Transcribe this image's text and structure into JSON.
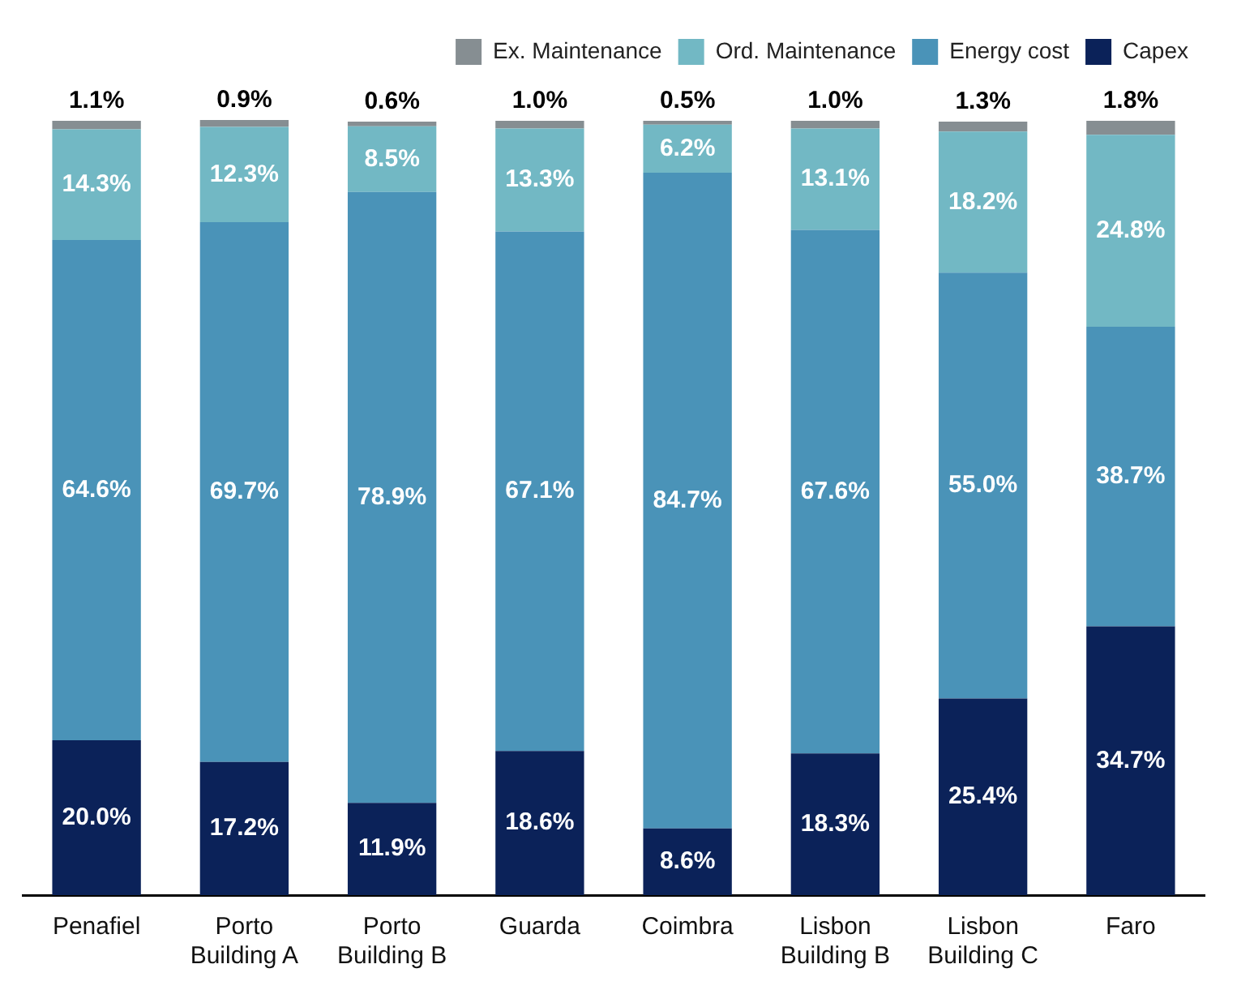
{
  "chart_data": {
    "type": "bar",
    "stacked": true,
    "legend": "top right",
    "grid": false,
    "categories": [
      "Penafiel",
      "Porto Building A",
      "Porto Building B",
      "Guarda",
      "Coimbra",
      "Lisbon Building B",
      "Lisbon Building C",
      "Faro"
    ],
    "series": [
      {
        "name": "Capex",
        "color": "#0b2259",
        "values": [
          20.0,
          17.2,
          11.9,
          18.6,
          8.6,
          18.3,
          25.4,
          34.7
        ],
        "value_labels": [
          "20.0%",
          "17.2%",
          "11.9%",
          "18.6%",
          "8.6%",
          "18.3%",
          "25.4%",
          "34.7%"
        ]
      },
      {
        "name": "Energy cost",
        "color": "#4a93b8",
        "values": [
          64.6,
          69.7,
          78.9,
          67.1,
          84.7,
          67.6,
          55.0,
          38.7
        ],
        "value_labels": [
          "64.6%",
          "69.7%",
          "78.9%",
          "67.1%",
          "84.7%",
          "67.6%",
          "55.0%",
          "38.7%"
        ]
      },
      {
        "name": "Ord. Maintenance",
        "color": "#72b8c4",
        "values": [
          14.3,
          12.3,
          8.5,
          13.3,
          6.2,
          13.1,
          18.2,
          24.8
        ],
        "value_labels": [
          "14.3%",
          "12.3%",
          "8.5%",
          "13.3%",
          "6.2%",
          "13.1%",
          "18.2%",
          "24.8%"
        ]
      },
      {
        "name": "Ex. Maintenance",
        "color": "#868e92",
        "values": [
          1.1,
          0.9,
          0.6,
          1.0,
          0.5,
          1.0,
          1.3,
          1.8
        ],
        "value_labels": [
          "1.1%",
          "0.9%",
          "0.6%",
          "1.0%",
          "0.5%",
          "1.0%",
          "1.3%",
          "1.8%"
        ]
      }
    ]
  }
}
